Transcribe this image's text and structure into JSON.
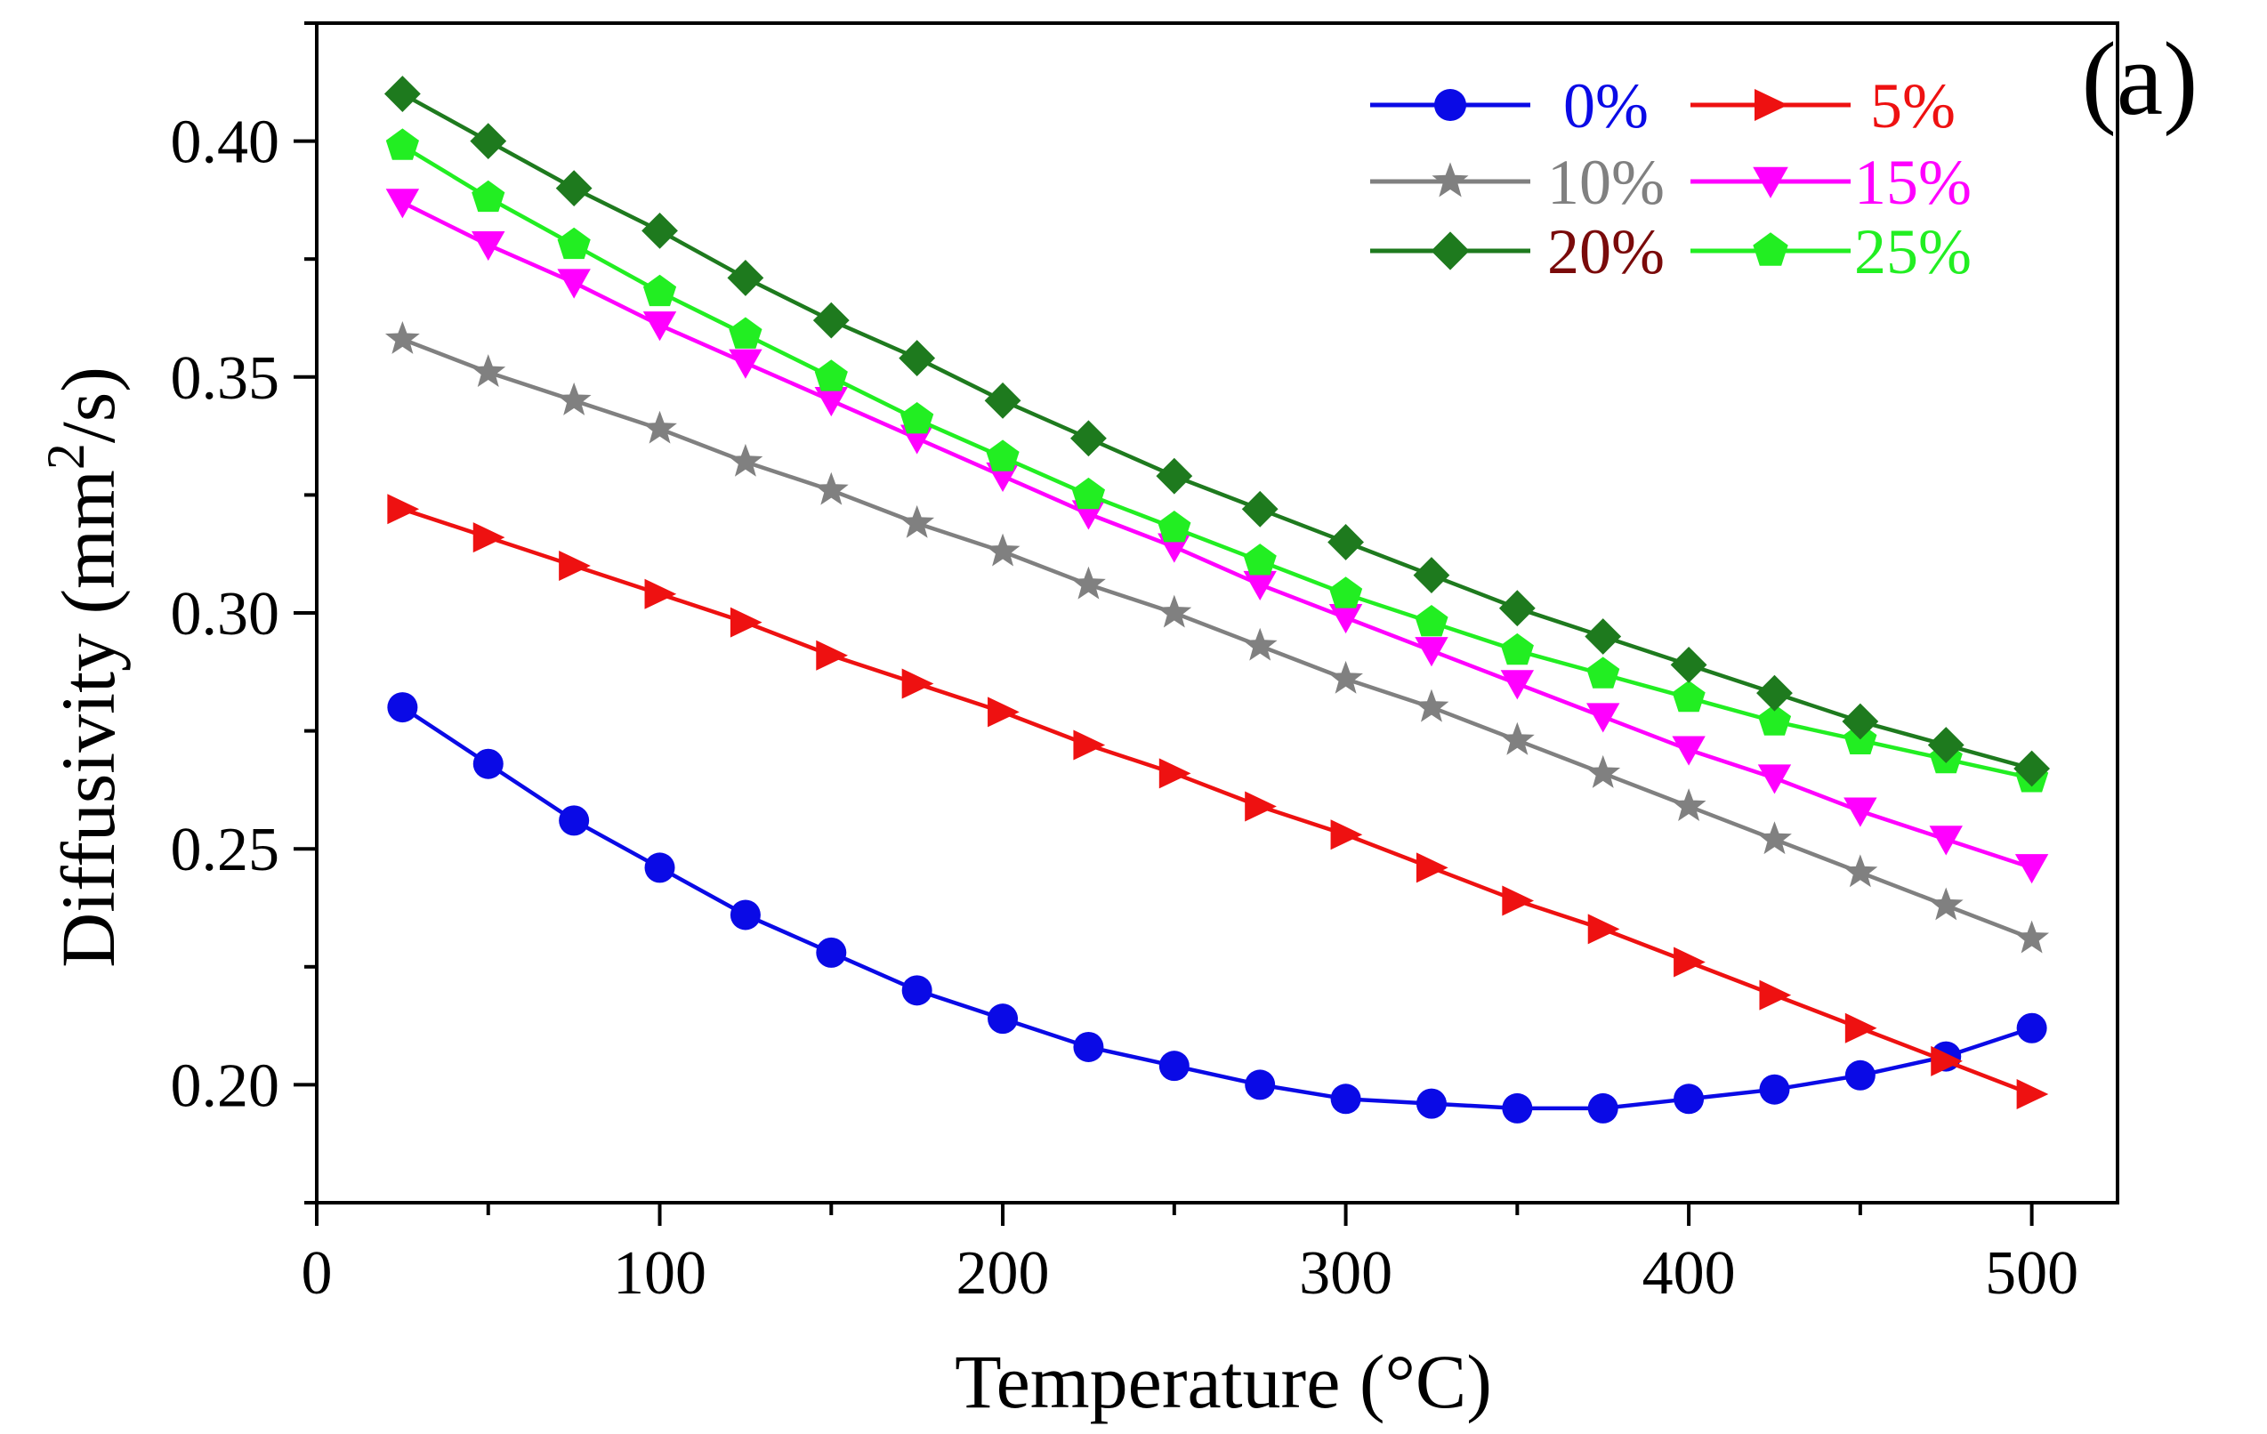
{
  "panel_label": "(a)",
  "chart_data": {
    "type": "line",
    "title": "",
    "xlabel": "Temperature (°C)",
    "ylabel_main": "Diffusivity (mm",
    "ylabel_sup": "2",
    "ylabel_tail": "/s)",
    "xlim": [
      0,
      525
    ],
    "ylim": [
      0.175,
      0.425
    ],
    "xticks": [
      0,
      100,
      200,
      300,
      400,
      500
    ],
    "xtick_labels": [
      "0",
      "100",
      "200",
      "300",
      "400",
      "500"
    ],
    "yticks": [
      0.2,
      0.25,
      0.3,
      0.35,
      0.4
    ],
    "ytick_labels": [
      "0.20",
      "0.25",
      "0.30",
      "0.35",
      "0.40"
    ],
    "grid": false,
    "legend_position": "top-right",
    "x": [
      25,
      50,
      75,
      100,
      125,
      150,
      175,
      200,
      225,
      250,
      275,
      300,
      325,
      350,
      375,
      400,
      425,
      450,
      475,
      500
    ],
    "series": [
      {
        "name": "0%",
        "color": "#0a0ae6",
        "marker": "circle",
        "values": [
          0.28,
          0.268,
          0.256,
          0.246,
          0.236,
          0.228,
          0.22,
          0.214,
          0.208,
          0.204,
          0.2,
          0.197,
          0.196,
          0.195,
          0.195,
          0.197,
          0.199,
          0.202,
          0.206,
          0.212
        ]
      },
      {
        "name": "5%",
        "color": "#ee1111",
        "marker": "triangle-right",
        "values": [
          0.322,
          0.316,
          0.31,
          0.304,
          0.298,
          0.291,
          0.285,
          0.279,
          0.272,
          0.266,
          0.259,
          0.253,
          0.246,
          0.239,
          0.233,
          0.226,
          0.219,
          0.212,
          0.205,
          0.198
        ]
      },
      {
        "name": "10%",
        "color": "#808080",
        "marker": "star",
        "values": [
          0.358,
          0.351,
          0.345,
          0.339,
          0.332,
          0.326,
          0.319,
          0.313,
          0.306,
          0.3,
          0.293,
          0.286,
          0.28,
          0.273,
          0.266,
          0.259,
          0.252,
          0.245,
          0.238,
          0.231
        ]
      },
      {
        "name": "15%",
        "color": "#ff00ff",
        "marker": "triangle-down",
        "values": [
          0.387,
          0.378,
          0.37,
          0.361,
          0.353,
          0.345,
          0.337,
          0.329,
          0.321,
          0.314,
          0.306,
          0.299,
          0.292,
          0.285,
          0.278,
          0.271,
          0.265,
          0.258,
          0.252,
          0.246
        ]
      },
      {
        "name": "20%",
        "color": "#1e7a1e",
        "marker": "diamond",
        "label_color": "#7a0a0a",
        "values": [
          0.41,
          0.4,
          0.39,
          0.381,
          0.371,
          0.362,
          0.354,
          0.345,
          0.337,
          0.329,
          0.322,
          0.315,
          0.308,
          0.301,
          0.295,
          0.289,
          0.283,
          0.277,
          0.272,
          0.267
        ]
      },
      {
        "name": "25%",
        "color": "#22ee22",
        "marker": "pentagon",
        "values": [
          0.399,
          0.388,
          0.378,
          0.368,
          0.359,
          0.35,
          0.341,
          0.333,
          0.325,
          0.318,
          0.311,
          0.304,
          0.298,
          0.292,
          0.287,
          0.282,
          0.277,
          0.273,
          0.269,
          0.265
        ]
      }
    ]
  }
}
